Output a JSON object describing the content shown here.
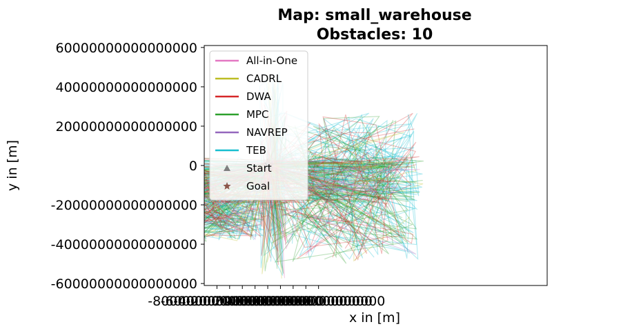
{
  "chart_data": {
    "type": "line",
    "title": [
      "Map: small_warehouse",
      "Obstacles: 10"
    ],
    "xlabel": "x in [m]",
    "ylabel": "y in [m]",
    "xlim": [
      -10000000000000000,
      44000000000000000
    ],
    "ylim": [
      61000000000000000,
      -61000000000000000
    ],
    "y_inverted": true,
    "x_ticks": [
      -8000000000000000,
      -6000000000000000,
      -4000000000000000,
      -2000000000000000,
      0,
      2000000000000000,
      4000000000000000,
      6000000000000000,
      8000000000000000
    ],
    "x_tick_labels": [
      "-8000000000000000",
      "-6000000000000000",
      "-4000000000000000",
      "-2000000000000000",
      "0",
      "2000000000000000",
      "4000000000000000",
      "6000000000000000",
      "8000000000000000"
    ],
    "y_ticks": [
      -60000000000000000,
      -40000000000000000,
      -20000000000000000,
      0,
      20000000000000000,
      40000000000000000,
      60000000000000000
    ],
    "y_tick_labels": [
      "-60000000000000000",
      "-40000000000000000",
      "-20000000000000000",
      "0",
      "20000000000000000",
      "40000000000000000",
      "60000000000000000"
    ],
    "grid": false,
    "legend": {
      "position": "upper-left",
      "entries": [
        {
          "label": "All-in-One",
          "color": "#e377c2",
          "marker": "line"
        },
        {
          "label": "CADRL",
          "color": "#bcbd22",
          "marker": "line"
        },
        {
          "label": "DWA",
          "color": "#d62728",
          "marker": "line"
        },
        {
          "label": "MPC",
          "color": "#2ca02c",
          "marker": "line"
        },
        {
          "label": "NAVREP",
          "color": "#9467bd",
          "marker": "line"
        },
        {
          "label": "TEB",
          "color": "#17becf",
          "marker": "line"
        },
        {
          "label": "Start",
          "color": "#7f7f7f",
          "marker": "triangle"
        },
        {
          "label": "Goal",
          "color": "#8c564b",
          "marker": "star"
        }
      ]
    },
    "start_point": {
      "x": 0,
      "y": 0
    },
    "goal_point": {
      "x": 0,
      "y": 0
    },
    "series": [
      {
        "name": "TEB",
        "color": "#17becf"
      },
      {
        "name": "MPC",
        "color": "#2ca02c"
      },
      {
        "name": "DWA",
        "color": "#d62728"
      },
      {
        "name": "CADRL",
        "color": "#bcbd22"
      },
      {
        "name": "All-in-One",
        "color": "#e377c2"
      },
      {
        "name": "NAVREP",
        "color": "#9467bd"
      }
    ]
  }
}
